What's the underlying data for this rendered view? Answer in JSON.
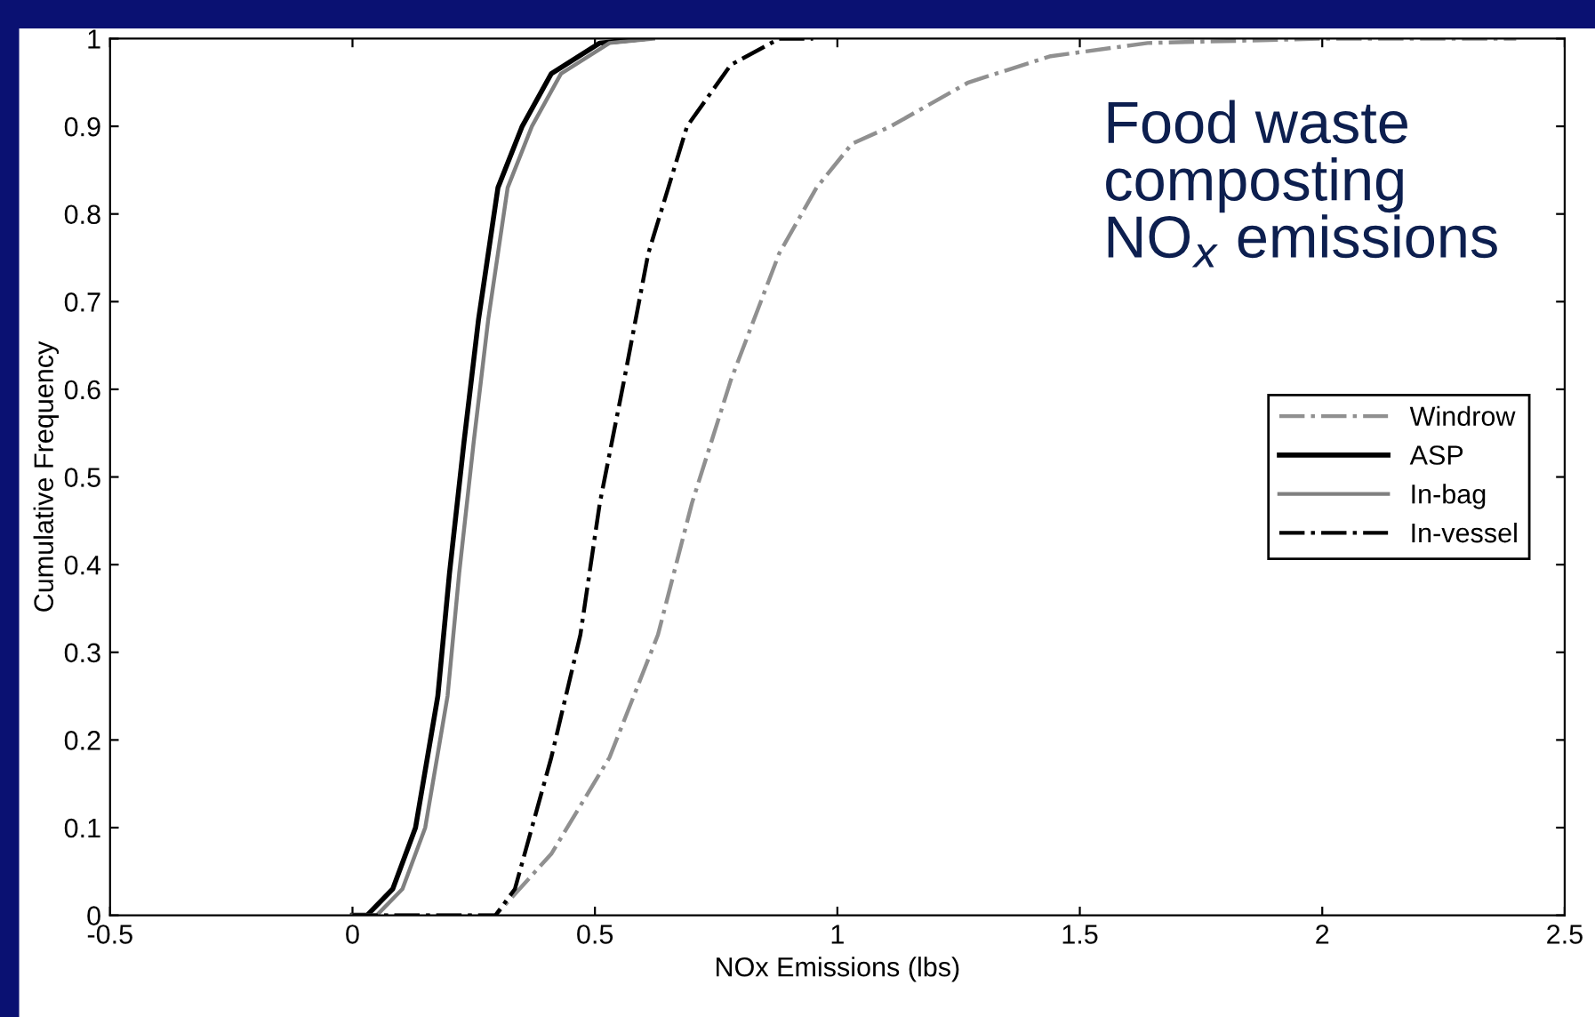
{
  "chart_data": {
    "type": "line",
    "title": "Food waste\ncomposting\nNO$_{x}$ emissions",
    "xlabel": "NOx Emissions (lbs)",
    "ylabel": "Cumulative Frequency",
    "xlim": [
      -0.5,
      2.5
    ],
    "xticks": [
      -0.5,
      0,
      0.5,
      1,
      1.5,
      2,
      2.5
    ],
    "ylim": [
      0,
      1
    ],
    "yticks": [
      0,
      0.1,
      0.2,
      0.3,
      0.4,
      0.5,
      0.6,
      0.7,
      0.8,
      0.9,
      1
    ],
    "grid": false,
    "legend": "center right",
    "marker": "none",
    "series": [
      {
        "name": "Windrow",
        "color": "#909090",
        "line_style": "dashdot",
        "x": [
          0.0,
          0.295,
          0.41,
          0.53,
          0.63,
          0.7,
          0.78,
          0.88,
          0.957,
          1.03,
          1.11,
          1.27,
          1.44,
          1.64,
          2.0,
          2.4
        ],
        "values": [
          0,
          0,
          0.07,
          0.18,
          0.32,
          0.47,
          0.61,
          0.755,
          0.83,
          0.88,
          0.9,
          0.95,
          0.98,
          0.995,
          1,
          1
        ]
      },
      {
        "name": "ASP",
        "color": "#000000",
        "line_style": "solid",
        "x": [
          0.0,
          0.03,
          0.083,
          0.13,
          0.176,
          0.2,
          0.23,
          0.26,
          0.3,
          0.35,
          0.41,
          0.51,
          0.6
        ],
        "values": [
          0,
          0,
          0.03,
          0.1,
          0.25,
          0.39,
          0.54,
          0.68,
          0.83,
          0.9,
          0.96,
          0.995,
          1
        ]
      },
      {
        "name": "In-bag",
        "color": "#808080",
        "line_style": "solid",
        "x": [
          0.0,
          0.05,
          0.103,
          0.15,
          0.196,
          0.22,
          0.25,
          0.28,
          0.32,
          0.37,
          0.43,
          0.53,
          0.62
        ],
        "values": [
          0,
          0,
          0.03,
          0.1,
          0.25,
          0.39,
          0.54,
          0.68,
          0.83,
          0.9,
          0.96,
          0.995,
          1
        ]
      },
      {
        "name": "In-vessel",
        "color": "#000000",
        "line_style": "dashdot",
        "x": [
          0.0,
          0.295,
          0.335,
          0.41,
          0.47,
          0.51,
          0.56,
          0.61,
          0.69,
          0.78,
          0.88,
          0.95
        ],
        "values": [
          0,
          0,
          0.03,
          0.18,
          0.32,
          0.47,
          0.61,
          0.755,
          0.9,
          0.97,
          1.0,
          1.0
        ]
      }
    ]
  }
}
